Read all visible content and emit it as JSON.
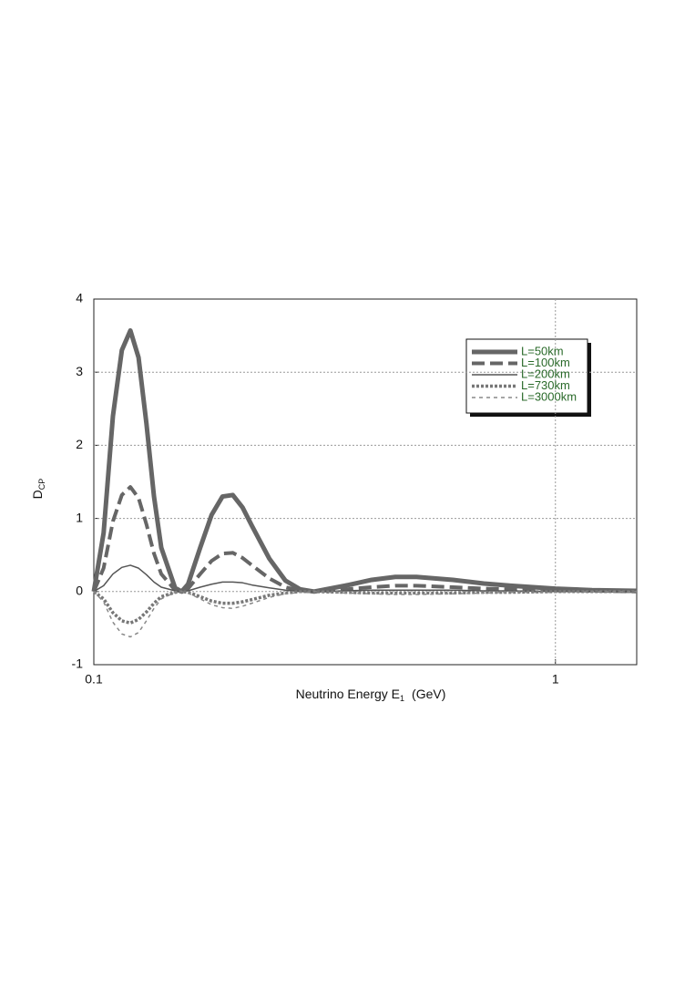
{
  "chart_data": {
    "type": "line",
    "xlabel": [
      "Neutrino Energy E",
      "1",
      "(GeV)"
    ],
    "ylabel": [
      "D",
      "CP"
    ],
    "xscale": "log",
    "xlim": [
      0.1,
      1.5
    ],
    "xticks": [
      0.1,
      1
    ],
    "ylim": [
      -1,
      4
    ],
    "yticks": [
      -1,
      0,
      1,
      2,
      3,
      4
    ],
    "grid": true,
    "legend": "upper right",
    "x": [
      0.1,
      0.105,
      0.11,
      0.115,
      0.12,
      0.125,
      0.13,
      0.135,
      0.14,
      0.15,
      0.155,
      0.16,
      0.17,
      0.18,
      0.19,
      0.2,
      0.21,
      0.22,
      0.24,
      0.26,
      0.28,
      0.3,
      0.35,
      0.4,
      0.45,
      0.5,
      0.6,
      0.7,
      0.8,
      1.0,
      1.2,
      1.5
    ],
    "series": [
      {
        "name": "L=50km",
        "color": "#666666",
        "values": [
          0,
          0.8,
          2.4,
          3.3,
          3.57,
          3.2,
          2.3,
          1.3,
          0.6,
          0.05,
          0,
          0.1,
          0.6,
          1.05,
          1.3,
          1.32,
          1.15,
          0.9,
          0.45,
          0.15,
          0.03,
          0,
          0.08,
          0.16,
          0.2,
          0.2,
          0.16,
          0.11,
          0.08,
          0.04,
          0.02,
          0.01
        ]
      },
      {
        "name": "L=100km",
        "color": "#666666",
        "values": [
          0,
          0.32,
          0.96,
          1.32,
          1.43,
          1.28,
          0.92,
          0.52,
          0.24,
          0.02,
          0,
          0.04,
          0.24,
          0.42,
          0.52,
          0.53,
          0.46,
          0.36,
          0.18,
          0.06,
          0.01,
          0,
          0.03,
          0.06,
          0.08,
          0.08,
          0.06,
          0.04,
          0.03,
          0.02,
          0.01,
          0
        ]
      },
      {
        "name": "L=200km",
        "color": "#555555",
        "values": [
          0,
          0.08,
          0.24,
          0.33,
          0.36,
          0.32,
          0.23,
          0.13,
          0.06,
          0.01,
          0,
          0.01,
          0.06,
          0.1,
          0.13,
          0.13,
          0.12,
          0.09,
          0.05,
          0.02,
          0,
          0,
          0.01,
          0.02,
          0.02,
          0.02,
          0.02,
          0.01,
          0.01,
          0,
          0,
          0
        ]
      },
      {
        "name": "L=730km",
        "color": "#777777",
        "values": [
          0,
          -0.1,
          -0.29,
          -0.4,
          -0.43,
          -0.38,
          -0.28,
          -0.16,
          -0.07,
          -0.01,
          0,
          -0.01,
          -0.07,
          -0.13,
          -0.16,
          -0.16,
          -0.14,
          -0.11,
          -0.05,
          -0.02,
          0,
          0,
          -0.01,
          -0.02,
          -0.02,
          -0.02,
          -0.02,
          -0.01,
          -0.01,
          0,
          0,
          0
        ]
      },
      {
        "name": "L=3000km",
        "color": "#888888",
        "values": [
          0,
          -0.14,
          -0.42,
          -0.58,
          -0.62,
          -0.56,
          -0.4,
          -0.23,
          -0.1,
          -0.01,
          0,
          -0.02,
          -0.1,
          -0.18,
          -0.22,
          -0.23,
          -0.2,
          -0.16,
          -0.08,
          -0.03,
          -0.01,
          0,
          -0.02,
          -0.03,
          -0.04,
          -0.04,
          -0.03,
          -0.02,
          -0.01,
          -0.01,
          0,
          0
        ]
      }
    ],
    "legend_text_color": "#2a6a2a"
  }
}
